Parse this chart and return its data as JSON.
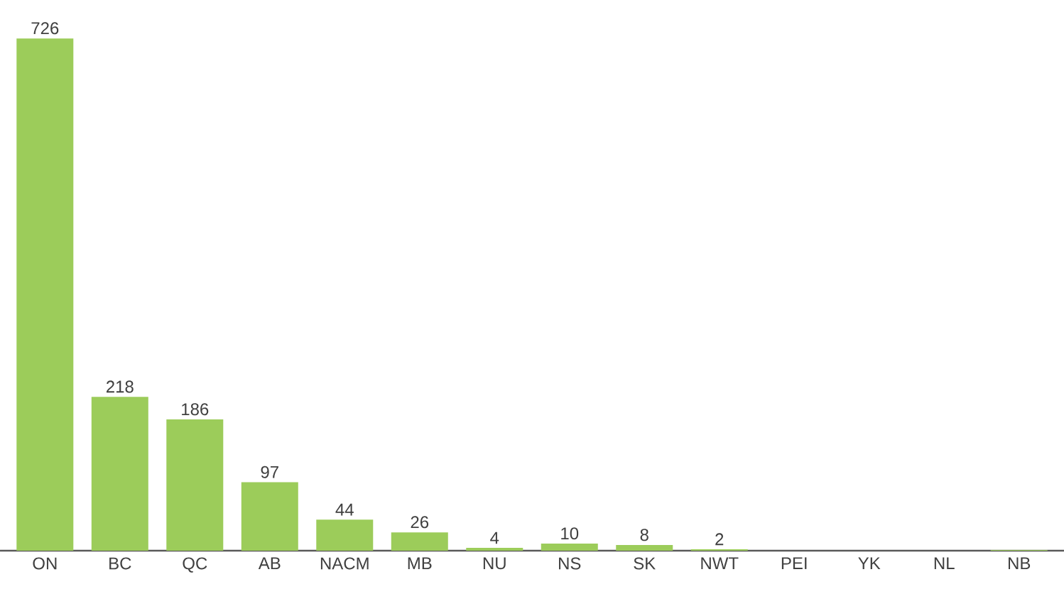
{
  "chart_data": {
    "type": "bar",
    "categories": [
      "ON",
      "BC",
      "QC",
      "AB",
      "NACM",
      "MB",
      "NU",
      "NS",
      "SK",
      "NWT",
      "PEI",
      "YK",
      "NL",
      "NB"
    ],
    "values": [
      726,
      218,
      186,
      97,
      44,
      26,
      4,
      10,
      8,
      2,
      0,
      0,
      0,
      1
    ],
    "value_labels": [
      "726",
      "218",
      "186",
      "97",
      "44",
      "26",
      "4",
      "10",
      "8",
      "2",
      null,
      null,
      null,
      null
    ],
    "color": "#9ccc5a",
    "tick_labels": "x"
  }
}
